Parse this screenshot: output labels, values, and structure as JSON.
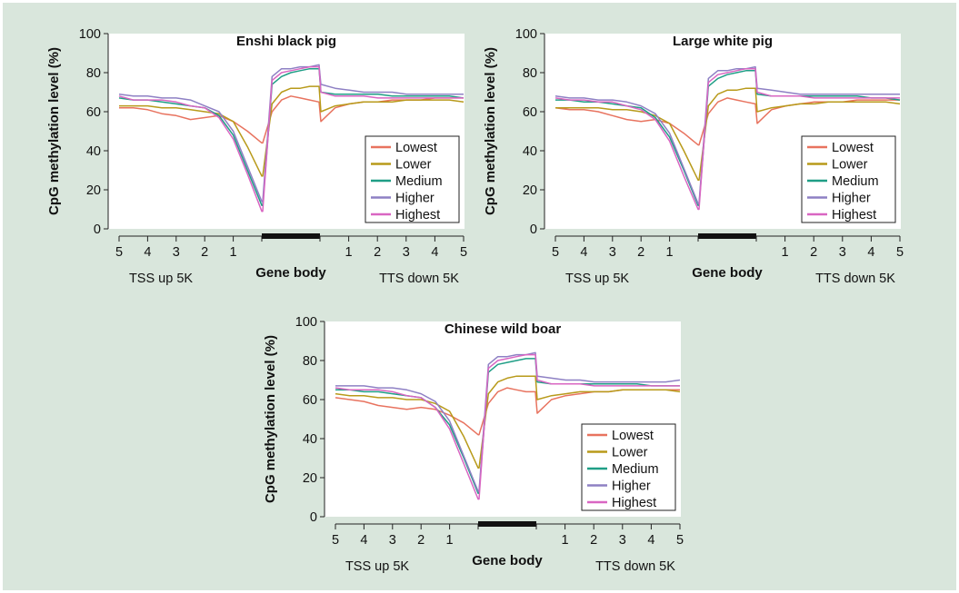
{
  "series_colors": {
    "Lowest": "#e8735f",
    "Lower": "#b89a1a",
    "Medium": "#1f9e86",
    "Higher": "#8e80c4",
    "Highest": "#d966c2"
  },
  "chart_data": [
    {
      "type": "line",
      "title": "Enshi black pig",
      "ylabel": "CpG methylation level (%)",
      "ylim": [
        0,
        100
      ],
      "yticks": [
        0,
        20,
        40,
        60,
        80,
        100
      ],
      "x_regions": [
        "TSS up 5K",
        "Gene body",
        "TTS down 5K"
      ],
      "upstream_tick_labels": [
        "5",
        "4",
        "3",
        "2",
        "1"
      ],
      "downstream_tick_labels": [
        "1",
        "2",
        "3",
        "4",
        "5"
      ],
      "legend_position": "bottom-right",
      "series": [
        {
          "name": "Lowest",
          "up": [
            62,
            62,
            61,
            59,
            58,
            56,
            57,
            58,
            55,
            50,
            44
          ],
          "body": [
            44,
            60,
            66,
            68,
            67,
            66,
            65
          ],
          "down": [
            55,
            62,
            64,
            65,
            65,
            66,
            66,
            66,
            67,
            67,
            67
          ]
        },
        {
          "name": "Lower",
          "up": [
            63,
            63,
            63,
            62,
            62,
            61,
            60,
            59,
            55,
            42,
            27
          ],
          "body": [
            27,
            64,
            70,
            72,
            72,
            73,
            73
          ],
          "down": [
            60,
            63,
            64,
            65,
            65,
            65,
            66,
            66,
            66,
            66,
            65
          ]
        },
        {
          "name": "Medium",
          "up": [
            67,
            66,
            66,
            65,
            64,
            63,
            62,
            58,
            48,
            30,
            12
          ],
          "body": [
            12,
            74,
            78,
            80,
            81,
            82,
            82
          ],
          "down": [
            70,
            69,
            69,
            69,
            69,
            68,
            68,
            68,
            68,
            68,
            67
          ]
        },
        {
          "name": "Higher",
          "up": [
            69,
            68,
            68,
            67,
            67,
            66,
            63,
            60,
            50,
            32,
            14
          ],
          "body": [
            14,
            78,
            82,
            82,
            83,
            83,
            84
          ],
          "down": [
            74,
            72,
            71,
            70,
            70,
            70,
            69,
            69,
            69,
            69,
            69
          ]
        },
        {
          "name": "Highest",
          "up": [
            68,
            66,
            66,
            66,
            65,
            63,
            62,
            57,
            46,
            28,
            9
          ],
          "body": [
            9,
            76,
            80,
            81,
            82,
            83,
            83
          ],
          "down": [
            70,
            68,
            68,
            68,
            67,
            67,
            67,
            67,
            67,
            67,
            67
          ]
        }
      ]
    },
    {
      "type": "line",
      "title": "Large white pig",
      "ylabel": "CpG methylation level (%)",
      "ylim": [
        0,
        100
      ],
      "yticks": [
        0,
        20,
        40,
        60,
        80,
        100
      ],
      "x_regions": [
        "TSS up 5K",
        "Gene body",
        "TTS down 5K"
      ],
      "upstream_tick_labels": [
        "5",
        "4",
        "3",
        "2",
        "1"
      ],
      "downstream_tick_labels": [
        "1",
        "2",
        "3",
        "4",
        "5"
      ],
      "legend_position": "bottom-right",
      "series": [
        {
          "name": "Lowest",
          "up": [
            62,
            61,
            61,
            60,
            58,
            56,
            55,
            56,
            54,
            49,
            43
          ],
          "body": [
            43,
            59,
            65,
            67,
            66,
            65,
            64
          ],
          "down": [
            54,
            61,
            63,
            64,
            65,
            65,
            65,
            66,
            66,
            66,
            66
          ]
        },
        {
          "name": "Lower",
          "up": [
            62,
            62,
            62,
            62,
            61,
            61,
            60,
            58,
            54,
            40,
            25
          ],
          "body": [
            25,
            63,
            69,
            71,
            71,
            72,
            72
          ],
          "down": [
            60,
            62,
            63,
            64,
            64,
            65,
            65,
            65,
            65,
            65,
            64
          ]
        },
        {
          "name": "Medium",
          "up": [
            66,
            66,
            65,
            65,
            64,
            63,
            62,
            57,
            47,
            30,
            12
          ],
          "body": [
            12,
            73,
            77,
            79,
            80,
            81,
            81
          ],
          "down": [
            69,
            68,
            68,
            68,
            68,
            68,
            68,
            68,
            67,
            67,
            66
          ]
        },
        {
          "name": "Higher",
          "up": [
            68,
            67,
            67,
            66,
            66,
            65,
            63,
            59,
            49,
            31,
            13
          ],
          "body": [
            13,
            77,
            81,
            81,
            82,
            82,
            83
          ],
          "down": [
            72,
            71,
            70,
            69,
            69,
            69,
            69,
            69,
            69,
            69,
            69
          ]
        },
        {
          "name": "Highest",
          "up": [
            67,
            66,
            66,
            65,
            65,
            63,
            61,
            56,
            45,
            27,
            10
          ],
          "body": [
            10,
            75,
            79,
            80,
            81,
            82,
            82
          ],
          "down": [
            70,
            68,
            68,
            68,
            67,
            67,
            67,
            67,
            67,
            67,
            67
          ]
        }
      ]
    },
    {
      "type": "line",
      "title": "Chinese wild boar",
      "ylabel": "CpG methylation level (%)",
      "ylim": [
        0,
        100
      ],
      "yticks": [
        0,
        20,
        40,
        60,
        80,
        100
      ],
      "x_regions": [
        "TSS up 5K",
        "Gene body",
        "TTS down 5K"
      ],
      "upstream_tick_labels": [
        "5",
        "4",
        "3",
        "2",
        "1"
      ],
      "downstream_tick_labels": [
        "1",
        "2",
        "3",
        "4",
        "5"
      ],
      "legend_position": "bottom-right",
      "series": [
        {
          "name": "Lowest",
          "up": [
            61,
            60,
            59,
            57,
            56,
            55,
            56,
            55,
            52,
            48,
            42
          ],
          "body": [
            42,
            58,
            64,
            66,
            65,
            64,
            64
          ],
          "down": [
            53,
            60,
            62,
            63,
            64,
            64,
            65,
            65,
            65,
            65,
            65
          ]
        },
        {
          "name": "Lower",
          "up": [
            63,
            62,
            62,
            61,
            61,
            60,
            60,
            58,
            54,
            41,
            25
          ],
          "body": [
            25,
            63,
            69,
            71,
            72,
            72,
            72
          ],
          "down": [
            60,
            62,
            63,
            64,
            64,
            64,
            65,
            65,
            65,
            65,
            64
          ]
        },
        {
          "name": "Medium",
          "up": [
            65,
            65,
            64,
            64,
            63,
            62,
            61,
            56,
            47,
            30,
            12
          ],
          "body": [
            12,
            74,
            78,
            79,
            80,
            81,
            81
          ],
          "down": [
            69,
            68,
            68,
            68,
            68,
            68,
            68,
            68,
            67,
            67,
            67
          ]
        },
        {
          "name": "Higher",
          "up": [
            67,
            67,
            67,
            66,
            66,
            65,
            63,
            59,
            49,
            31,
            13
          ],
          "body": [
            13,
            78,
            82,
            82,
            83,
            83,
            84
          ],
          "down": [
            72,
            71,
            70,
            70,
            69,
            69,
            69,
            69,
            69,
            69,
            70
          ]
        },
        {
          "name": "Highest",
          "up": [
            66,
            65,
            65,
            65,
            64,
            62,
            61,
            56,
            45,
            27,
            9
          ],
          "body": [
            9,
            76,
            80,
            81,
            82,
            83,
            83
          ],
          "down": [
            70,
            68,
            68,
            68,
            67,
            67,
            67,
            67,
            67,
            67,
            67
          ]
        }
      ]
    }
  ]
}
